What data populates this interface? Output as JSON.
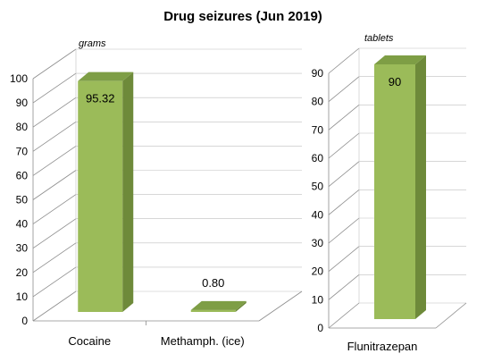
{
  "chart_data": [
    {
      "type": "bar",
      "title": "Drug seizures (Jun 2019)",
      "unit_label": "grams",
      "categories": [
        "Cocaine",
        "Methamph. (ice)"
      ],
      "values": [
        95.32,
        0.8
      ],
      "data_labels": [
        "95.32",
        "0.80"
      ],
      "ylim": [
        0,
        100
      ],
      "yticks": [
        "0",
        "10",
        "20",
        "30",
        "40",
        "50",
        "60",
        "70",
        "80",
        "90",
        "100"
      ],
      "grid": true,
      "style": "3d",
      "bar_color": "#9BBB59",
      "bar_side_color": "#6E8A3A",
      "bar_top_color": "#7E9E45"
    },
    {
      "type": "bar",
      "unit_label": "tablets",
      "categories": [
        "Flunitrazepan"
      ],
      "values": [
        90
      ],
      "data_labels": [
        "90"
      ],
      "ylim": [
        0,
        90
      ],
      "yticks": [
        "0",
        "10",
        "20",
        "30",
        "40",
        "50",
        "60",
        "70",
        "80",
        "90"
      ],
      "grid": true,
      "style": "3d",
      "bar_color": "#9BBB59",
      "bar_side_color": "#6E8A3A",
      "bar_top_color": "#7E9E45"
    }
  ]
}
